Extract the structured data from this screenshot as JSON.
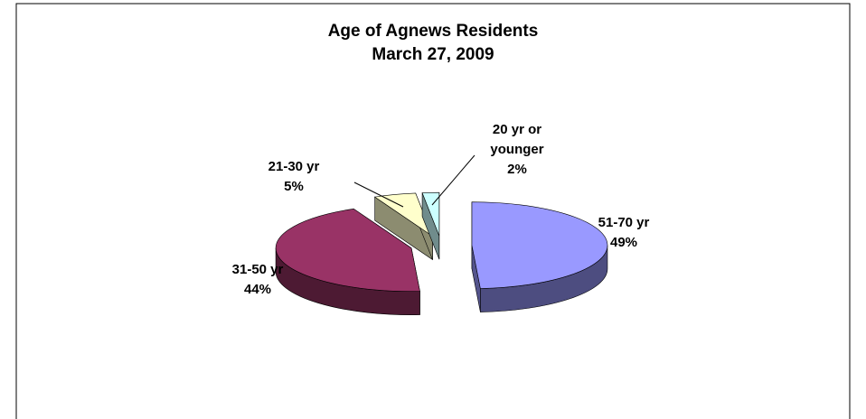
{
  "chart_data": {
    "type": "pie",
    "title": "Age of Agnews Residents",
    "subtitle": "March 27, 2009",
    "categories": [
      "51-70 yr",
      "31-50 yr",
      "21-30 yr",
      "20 yr or younger"
    ],
    "values": [
      49,
      44,
      5,
      2
    ],
    "value_labels": [
      "49%",
      "44%",
      "5%",
      "2%"
    ],
    "colors": [
      "#9999ff",
      "#993366",
      "#ffffcc",
      "#ccffff"
    ]
  }
}
